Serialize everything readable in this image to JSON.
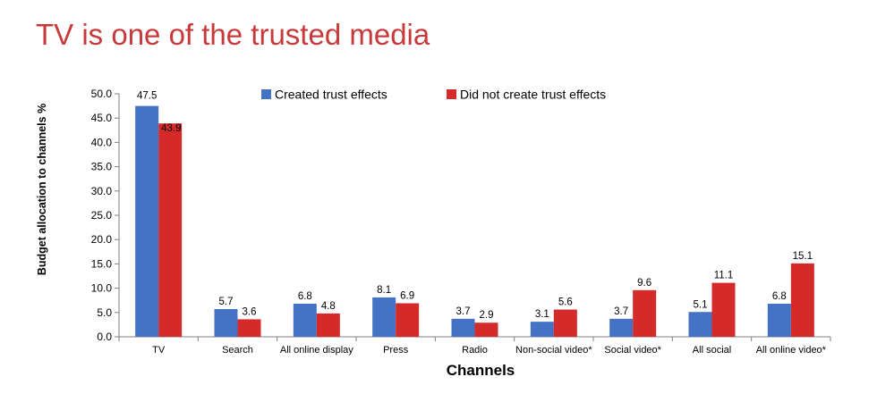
{
  "page": {
    "title": "TV is one of the trusted media"
  },
  "chart_data": {
    "type": "bar",
    "title": "",
    "xlabel": "Channels",
    "ylabel": "Budget allocation to channels %",
    "ylim": [
      0,
      50
    ],
    "yticks": [
      "0.0",
      "5.0",
      "10.0",
      "15.0",
      "20.0",
      "25.0",
      "30.0",
      "35.0",
      "40.0",
      "45.0",
      "50.0"
    ],
    "grid": false,
    "legend_position": "top",
    "categories": [
      "TV",
      "Search",
      "All online display",
      "Press",
      "Radio",
      "Non-social video*",
      "Social video*",
      "All social",
      "All online video*"
    ],
    "series": [
      {
        "name": "Created trust effects",
        "color": "#4472c4",
        "values": [
          47.5,
          5.7,
          6.8,
          8.1,
          3.7,
          3.1,
          3.7,
          5.1,
          6.8
        ],
        "labels": [
          "47.5",
          "5.7",
          "6.8",
          "8.1",
          "3.7",
          "3.1",
          "3.7",
          "5.1",
          "6.8"
        ]
      },
      {
        "name": "Did not create trust effects",
        "color": "#d42a2a",
        "values": [
          43.9,
          3.6,
          4.8,
          6.9,
          2.9,
          5.6,
          9.6,
          11.1,
          15.1
        ],
        "labels": [
          "43.9",
          "3.6",
          "4.8",
          "6.9",
          "2.9",
          "5.6",
          "9.6",
          "11.1",
          "15.1"
        ]
      }
    ]
  }
}
